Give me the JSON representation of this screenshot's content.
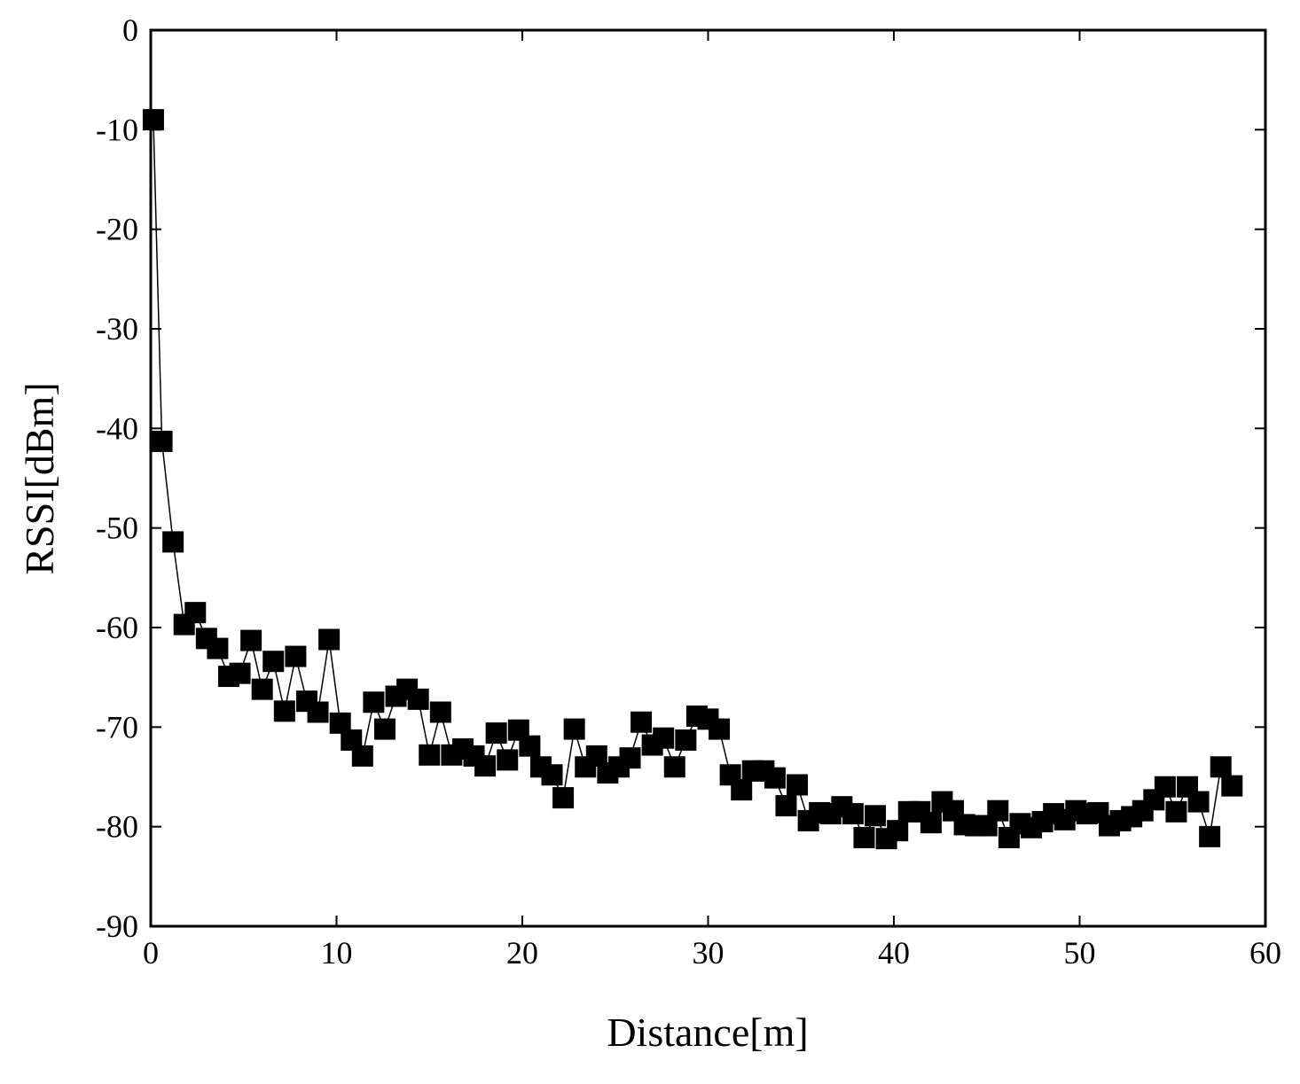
{
  "chart_data": {
    "type": "line",
    "x_label": "Distance[m]",
    "y_label": "RSSI[dBm]",
    "xlim": [
      0,
      60
    ],
    "ylim": [
      -90,
      0
    ],
    "xticks": [
      0,
      10,
      20,
      30,
      40,
      50,
      60
    ],
    "yticks": [
      0,
      -10,
      -20,
      -30,
      -40,
      -50,
      -60,
      -70,
      -80,
      -90
    ],
    "marker": "square",
    "series": [
      {
        "color": "#000000",
        "x": [
          0.14,
          0.6,
          1.2,
          1.8,
          2.4,
          3.0,
          3.6,
          4.2,
          4.8,
          5.4,
          6.0,
          6.6,
          7.2,
          7.8,
          8.4,
          9.0,
          9.6,
          10.2,
          10.8,
          11.4,
          12.0,
          12.6,
          13.2,
          13.8,
          14.4,
          15.0,
          15.6,
          16.2,
          16.8,
          17.4,
          18.0,
          18.6,
          19.2,
          19.8,
          20.4,
          21.0,
          21.6,
          22.2,
          22.8,
          23.4,
          24.0,
          24.6,
          25.2,
          25.8,
          26.4,
          27.0,
          27.6,
          28.2,
          28.8,
          29.4,
          30.0,
          30.6,
          31.2,
          31.8,
          32.4,
          33.0,
          33.6,
          34.2,
          34.8,
          35.4,
          36.0,
          36.6,
          37.2,
          37.8,
          38.4,
          39.0,
          39.6,
          40.2,
          40.8,
          41.4,
          42.0,
          42.6,
          43.2,
          43.8,
          44.4,
          45.0,
          45.6,
          46.2,
          46.8,
          47.4,
          48.0,
          48.6,
          49.2,
          49.8,
          50.4,
          51.0,
          51.6,
          52.2,
          52.8,
          53.4,
          54.0,
          54.6,
          55.2,
          55.8,
          56.4,
          57.0,
          57.6,
          58.2
        ],
        "values": [
          -9.0,
          -41.3,
          -51.4,
          -59.7,
          -58.5,
          -61.1,
          -62.1,
          -64.9,
          -64.6,
          -61.3,
          -66.2,
          -63.4,
          -68.4,
          -62.9,
          -67.4,
          -68.5,
          -61.2,
          -69.6,
          -71.3,
          -72.9,
          -67.5,
          -70.2,
          -66.9,
          -66.2,
          -67.2,
          -72.8,
          -68.5,
          -72.8,
          -72.2,
          -72.9,
          -73.9,
          -70.6,
          -73.3,
          -70.3,
          -71.9,
          -74.0,
          -74.8,
          -77.1,
          -70.2,
          -74.0,
          -72.9,
          -74.6,
          -74.0,
          -73.1,
          -69.5,
          -71.8,
          -71.1,
          -74.0,
          -71.3,
          -68.9,
          -69.2,
          -70.2,
          -74.8,
          -76.3,
          -74.4,
          -74.4,
          -75.1,
          -77.9,
          -75.8,
          -79.4,
          -78.6,
          -78.7,
          -78.0,
          -78.7,
          -81.1,
          -78.9,
          -81.2,
          -80.4,
          -78.5,
          -78.5,
          -79.6,
          -77.5,
          -78.4,
          -79.8,
          -79.9,
          -79.9,
          -78.4,
          -81.1,
          -79.7,
          -80.1,
          -79.5,
          -78.7,
          -79.3,
          -78.4,
          -78.7,
          -78.6,
          -79.9,
          -79.4,
          -79.0,
          -78.4,
          -77.3,
          -76.0,
          -78.5,
          -76.0,
          -77.5,
          -81.0,
          -74.0,
          -75.9
        ]
      }
    ]
  }
}
